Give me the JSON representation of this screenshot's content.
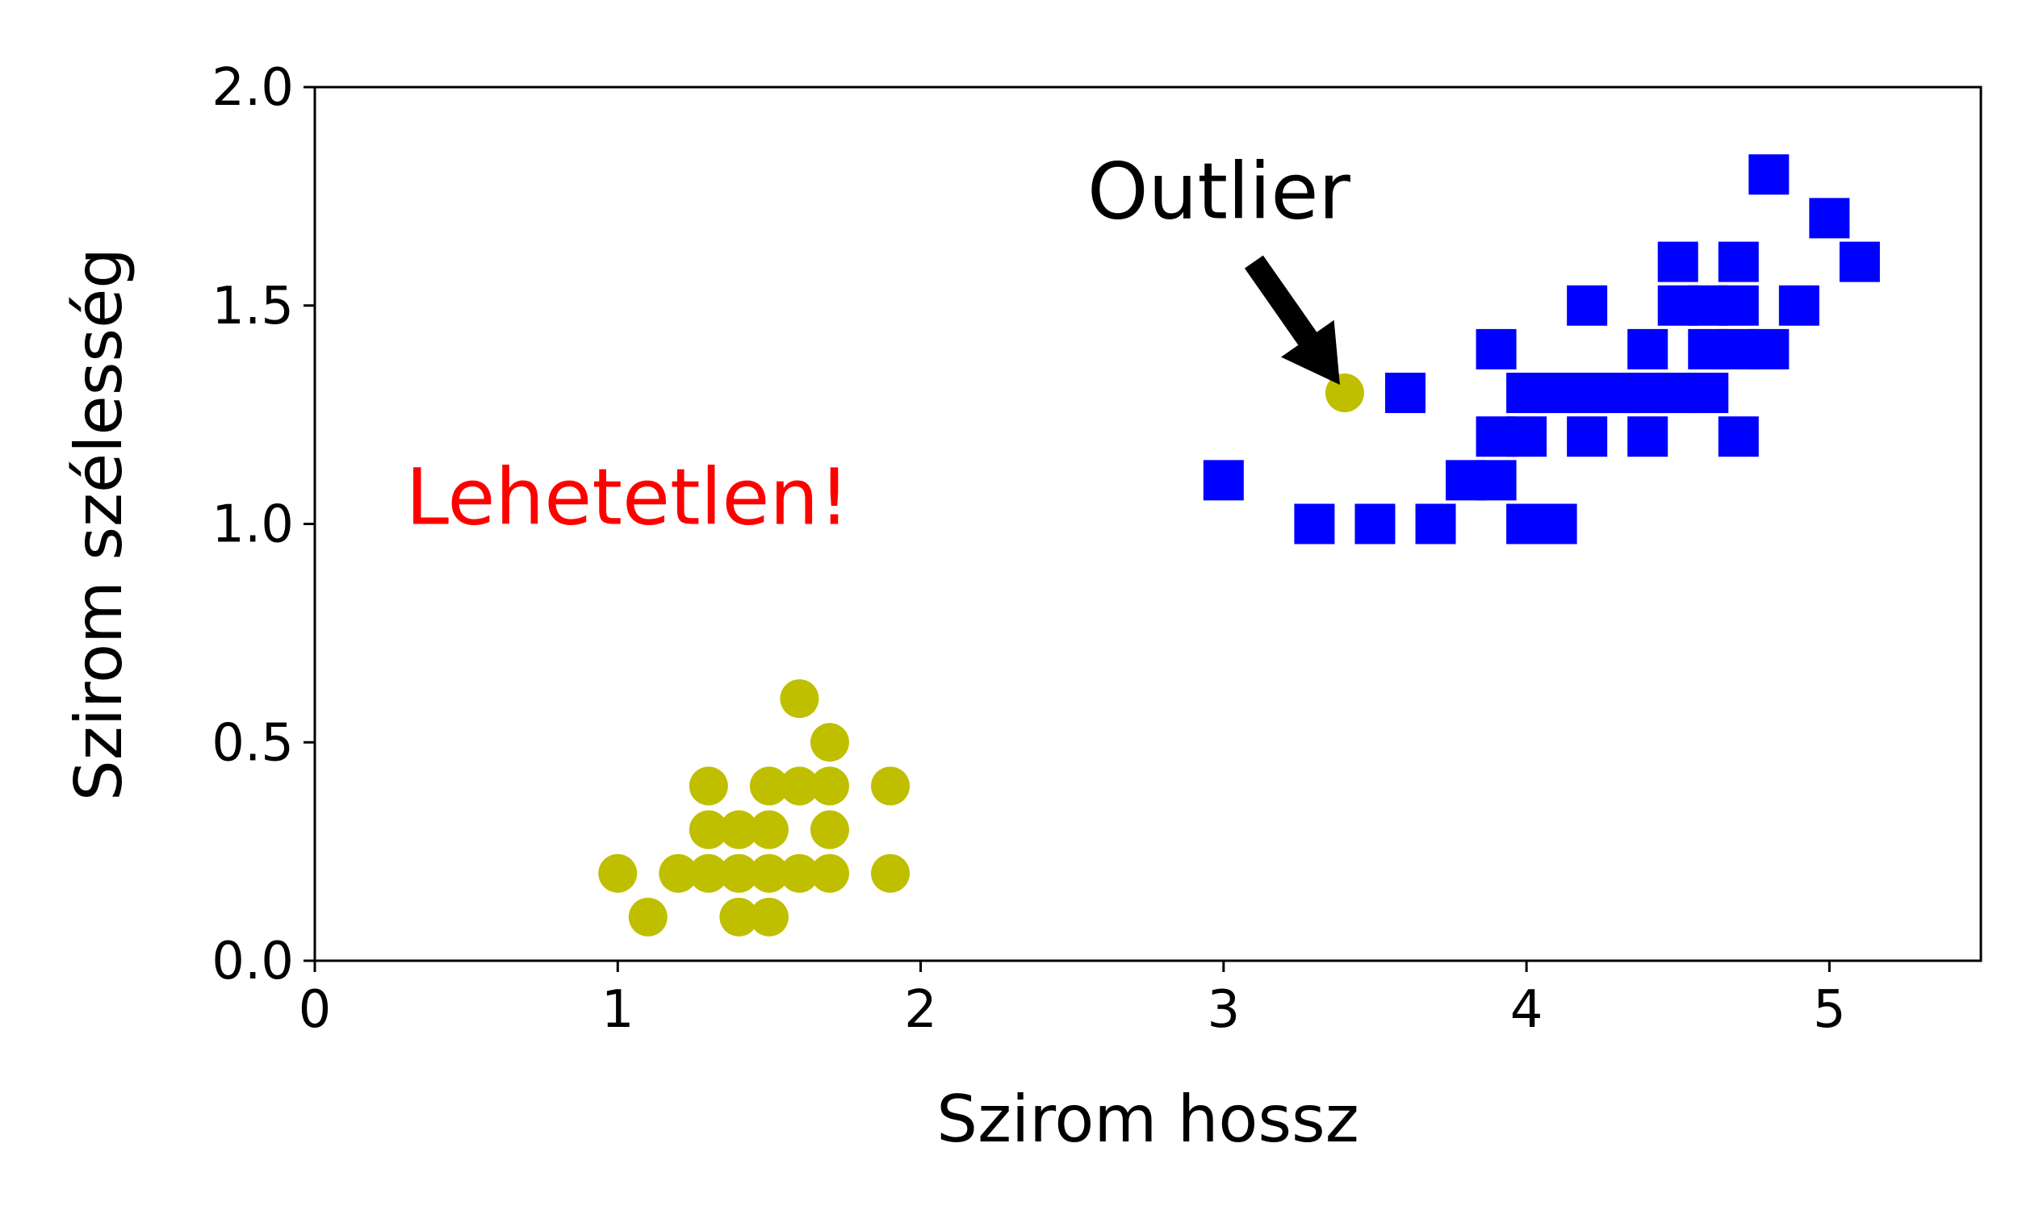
{
  "chart_data": {
    "type": "scatter",
    "title": "",
    "xlabel": "Szirom hossz",
    "ylabel": "Szirom szélesség",
    "xlim": [
      0,
      5.5
    ],
    "ylim": [
      0,
      2.0
    ],
    "xticks": [
      "0",
      "1",
      "2",
      "3",
      "4",
      "5"
    ],
    "yticks": [
      "0.0",
      "0.5",
      "1.0",
      "1.5",
      "2.0"
    ],
    "grid": false,
    "legend": "none",
    "series": [
      {
        "marker": "circle",
        "color": "#bfbf00",
        "points": [
          [
            1.0,
            0.2
          ],
          [
            1.1,
            0.1
          ],
          [
            1.2,
            0.2
          ],
          [
            1.3,
            0.2
          ],
          [
            1.3,
            0.3
          ],
          [
            1.3,
            0.4
          ],
          [
            1.4,
            0.1
          ],
          [
            1.4,
            0.2
          ],
          [
            1.4,
            0.3
          ],
          [
            1.5,
            0.1
          ],
          [
            1.5,
            0.2
          ],
          [
            1.5,
            0.3
          ],
          [
            1.5,
            0.4
          ],
          [
            1.6,
            0.2
          ],
          [
            1.6,
            0.4
          ],
          [
            1.6,
            0.6
          ],
          [
            1.7,
            0.2
          ],
          [
            1.7,
            0.3
          ],
          [
            1.7,
            0.4
          ],
          [
            1.7,
            0.5
          ],
          [
            1.9,
            0.2
          ],
          [
            1.9,
            0.4
          ],
          [
            3.4,
            1.3
          ]
        ]
      },
      {
        "marker": "square",
        "color": "#0000ff",
        "points": [
          [
            3.0,
            1.1
          ],
          [
            3.3,
            1.0
          ],
          [
            3.5,
            1.0
          ],
          [
            3.6,
            1.3
          ],
          [
            3.7,
            1.0
          ],
          [
            3.8,
            1.1
          ],
          [
            3.9,
            1.1
          ],
          [
            3.9,
            1.2
          ],
          [
            3.9,
            1.4
          ],
          [
            4.0,
            1.0
          ],
          [
            4.0,
            1.2
          ],
          [
            4.0,
            1.3
          ],
          [
            4.1,
            1.0
          ],
          [
            4.1,
            1.3
          ],
          [
            4.2,
            1.2
          ],
          [
            4.2,
            1.3
          ],
          [
            4.2,
            1.5
          ],
          [
            4.3,
            1.3
          ],
          [
            4.4,
            1.2
          ],
          [
            4.4,
            1.3
          ],
          [
            4.4,
            1.4
          ],
          [
            4.5,
            1.3
          ],
          [
            4.5,
            1.5
          ],
          [
            4.5,
            1.6
          ],
          [
            4.6,
            1.3
          ],
          [
            4.6,
            1.4
          ],
          [
            4.6,
            1.5
          ],
          [
            4.7,
            1.2
          ],
          [
            4.7,
            1.4
          ],
          [
            4.7,
            1.5
          ],
          [
            4.7,
            1.6
          ],
          [
            4.8,
            1.4
          ],
          [
            4.8,
            1.8
          ],
          [
            4.9,
            1.5
          ],
          [
            5.0,
            1.7
          ],
          [
            5.1,
            1.6
          ]
        ]
      }
    ],
    "annotations": [
      {
        "text": "Outlier",
        "x": 2.55,
        "y": 1.7,
        "color": "#000000",
        "arrow_from": [
          3.1,
          1.6
        ],
        "arrow_to": [
          3.4,
          1.3
        ]
      },
      {
        "text": "Lehetetlen!",
        "x": 0.3,
        "y": 1.0,
        "color": "#ff0000"
      }
    ]
  }
}
